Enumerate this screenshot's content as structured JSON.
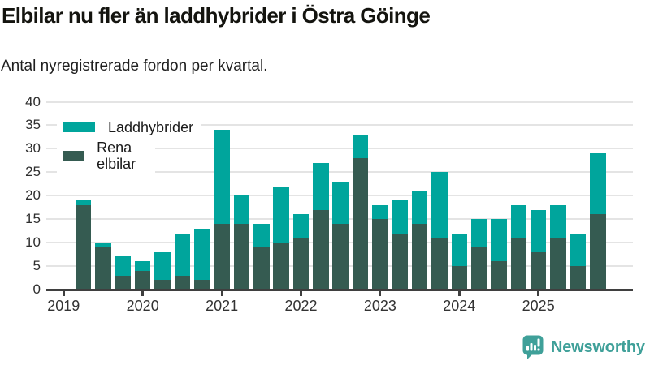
{
  "header": {
    "title": "Elbilar nu fler än laddhybrider i Östra Göinge",
    "subtitle": "Antal nyregistrerade fordon per kvartal."
  },
  "chart_data": {
    "type": "bar",
    "stacked": true,
    "title": "Elbilar nu fler än laddhybrider i Östra Göinge",
    "subtitle": "Antal nyregistrerade fordon per kvartal.",
    "categories": [
      "2019 K2",
      "2019 K3",
      "2019 K4",
      "2020 K1",
      "2020 K2",
      "2020 K3",
      "2020 K4",
      "2021 K1",
      "2021 K2",
      "2021 K3",
      "2021 K4",
      "2022 K1",
      "2022 K2",
      "2022 K3",
      "2022 K4",
      "2023 K1",
      "2023 K2",
      "2023 K3",
      "2023 K4",
      "2024 K1",
      "2024 K2",
      "2024 K3",
      "2024 K4",
      "2025 K1",
      "2025 K2",
      "2025 K3",
      "2025 K4"
    ],
    "series": [
      {
        "name": "Rena elbilar",
        "color": "#355b51",
        "values": [
          18,
          9,
          3,
          4,
          2,
          3,
          2,
          14,
          14,
          9,
          10,
          11,
          17,
          14,
          28,
          15,
          12,
          14,
          11,
          5,
          9,
          6,
          11,
          8,
          11,
          5,
          16
        ]
      },
      {
        "name": "Laddhybrider",
        "color": "#00a59c",
        "values": [
          1,
          1,
          4,
          2,
          6,
          9,
          11,
          20,
          6,
          5,
          12,
          5,
          10,
          9,
          5,
          3,
          7,
          7,
          14,
          7,
          6,
          9,
          7,
          9,
          7,
          7,
          13
        ]
      }
    ],
    "ylim": [
      0,
      40
    ],
    "yticks": [
      0,
      5,
      10,
      15,
      20,
      25,
      30,
      35,
      40
    ],
    "xticks_years": [
      "2019",
      "2020",
      "2021",
      "2022",
      "2023",
      "2024",
      "2025"
    ],
    "grid": "horizontal",
    "legend_position": "top-left"
  },
  "legend": {
    "items": [
      {
        "label": "Laddhybrider",
        "color": "#00a59c"
      },
      {
        "label": "Rena elbilar",
        "color": "#355b51"
      }
    ]
  },
  "footer": {
    "brand": "Newsworthy",
    "brand_color": "#3fa099"
  },
  "colors": {
    "laddhybrider": "#00a59c",
    "rena_elbilar": "#355b51",
    "gridline": "#e4e4e4",
    "axis": "#3f3f3f",
    "brand": "#3fa099"
  }
}
